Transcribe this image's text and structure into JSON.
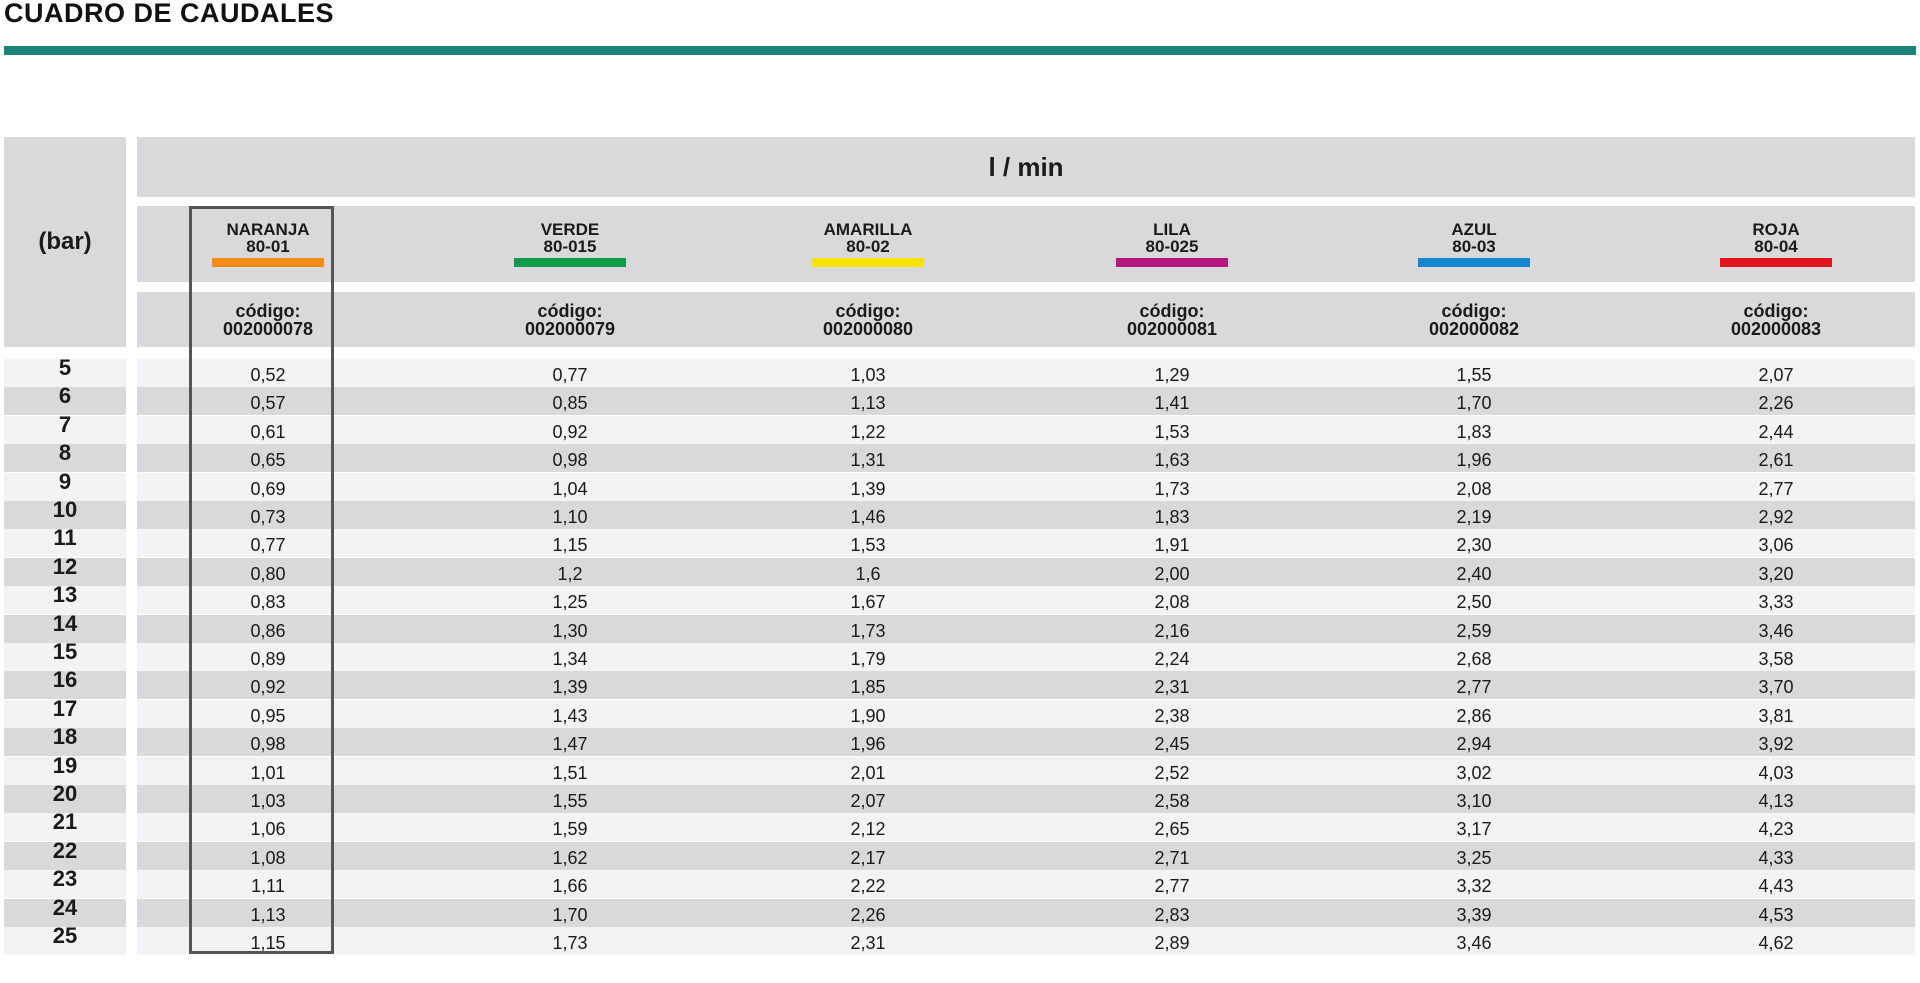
{
  "page_title": "CUADRO DE CAUDALES",
  "pressure_header": "(bar)",
  "flow_unit": "l / min",
  "nozzles": [
    {
      "name": "NARANJA",
      "model": "80-01",
      "color": "#f28c14",
      "code_label": "código:",
      "code": "002000078"
    },
    {
      "name": "VERDE",
      "model": "80-015",
      "color": "#0e9a48",
      "code_label": "código:",
      "code": "002000079"
    },
    {
      "name": "AMARILLA",
      "model": "80-02",
      "color": "#f7e500",
      "code_label": "código:",
      "code": "002000080"
    },
    {
      "name": "LILA",
      "model": "80-025",
      "color": "#b5177f",
      "code_label": "código:",
      "code": "002000081"
    },
    {
      "name": "AZUL",
      "model": "80-03",
      "color": "#1686d0",
      "code_label": "código:",
      "code": "002000082"
    },
    {
      "name": "ROJA",
      "model": "80-04",
      "color": "#e3141e",
      "code_label": "código:",
      "code": "002000083"
    }
  ],
  "rows": [
    {
      "bar": "5",
      "values": [
        "0,52",
        "0,77",
        "1,03",
        "1,29",
        "1,55",
        "2,07"
      ]
    },
    {
      "bar": "6",
      "values": [
        "0,57",
        "0,85",
        "1,13",
        "1,41",
        "1,70",
        "2,26"
      ]
    },
    {
      "bar": "7",
      "values": [
        "0,61",
        "0,92",
        "1,22",
        "1,53",
        "1,83",
        "2,44"
      ]
    },
    {
      "bar": "8",
      "values": [
        "0,65",
        "0,98",
        "1,31",
        "1,63",
        "1,96",
        "2,61"
      ]
    },
    {
      "bar": "9",
      "values": [
        "0,69",
        "1,04",
        "1,39",
        "1,73",
        "2,08",
        "2,77"
      ]
    },
    {
      "bar": "10",
      "values": [
        "0,73",
        "1,10",
        "1,46",
        "1,83",
        "2,19",
        "2,92"
      ]
    },
    {
      "bar": "11",
      "values": [
        "0,77",
        "1,15",
        "1,53",
        "1,91",
        "2,30",
        "3,06"
      ]
    },
    {
      "bar": "12",
      "values": [
        "0,80",
        "1,2",
        "1,6",
        "2,00",
        "2,40",
        "3,20"
      ]
    },
    {
      "bar": "13",
      "values": [
        "0,83",
        "1,25",
        "1,67",
        "2,08",
        "2,50",
        "3,33"
      ]
    },
    {
      "bar": "14",
      "values": [
        "0,86",
        "1,30",
        "1,73",
        "2,16",
        "2,59",
        "3,46"
      ]
    },
    {
      "bar": "15",
      "values": [
        "0,89",
        "1,34",
        "1,79",
        "2,24",
        "2,68",
        "3,58"
      ]
    },
    {
      "bar": "16",
      "values": [
        "0,92",
        "1,39",
        "1,85",
        "2,31",
        "2,77",
        "3,70"
      ]
    },
    {
      "bar": "17",
      "values": [
        "0,95",
        "1,43",
        "1,90",
        "2,38",
        "2,86",
        "3,81"
      ]
    },
    {
      "bar": "18",
      "values": [
        "0,98",
        "1,47",
        "1,96",
        "2,45",
        "2,94",
        "3,92"
      ]
    },
    {
      "bar": "19",
      "values": [
        "1,01",
        "1,51",
        "2,01",
        "2,52",
        "3,02",
        "4,03"
      ]
    },
    {
      "bar": "20",
      "values": [
        "1,03",
        "1,55",
        "2,07",
        "2,58",
        "3,10",
        "4,13"
      ]
    },
    {
      "bar": "21",
      "values": [
        "1,06",
        "1,59",
        "2,12",
        "2,65",
        "3,17",
        "4,23"
      ]
    },
    {
      "bar": "22",
      "values": [
        "1,08",
        "1,62",
        "2,17",
        "2,71",
        "3,25",
        "4,33"
      ]
    },
    {
      "bar": "23",
      "values": [
        "1,11",
        "1,66",
        "2,22",
        "2,77",
        "3,32",
        "4,43"
      ]
    },
    {
      "bar": "24",
      "values": [
        "1,13",
        "1,70",
        "2,26",
        "2,83",
        "3,39",
        "4,53"
      ]
    },
    {
      "bar": "25",
      "values": [
        "1,15",
        "1,73",
        "2,31",
        "2,89",
        "3,46",
        "4,62"
      ]
    }
  ]
}
